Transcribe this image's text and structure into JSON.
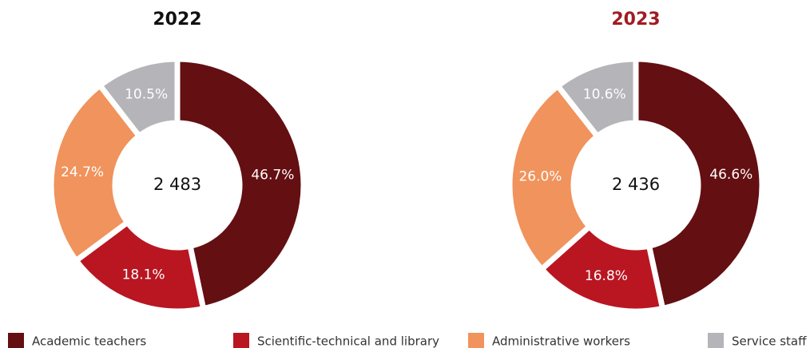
{
  "legend": {
    "categories": [
      "Academic teachers",
      "Scientific-technical and library",
      "Administrative workers",
      "Service staff"
    ],
    "colors": [
      "#640f12",
      "#b91622",
      "#f0935c",
      "#b4b4b9"
    ]
  },
  "chart_data": [
    {
      "type": "pie",
      "title": "2022",
      "title_color": "#111111",
      "total": "2 483",
      "values": [
        46.7,
        18.1,
        24.7,
        10.5
      ],
      "value_labels": [
        "46.7%",
        "18.1%",
        "24.7%",
        "10.5%"
      ]
    },
    {
      "type": "pie",
      "title": "2023",
      "title_color": "#a01c22",
      "total": "2 436",
      "values": [
        46.6,
        16.8,
        26.0,
        10.6
      ],
      "value_labels": [
        "46.6%",
        "16.8%",
        "26.0%",
        "10.6%"
      ]
    }
  ]
}
